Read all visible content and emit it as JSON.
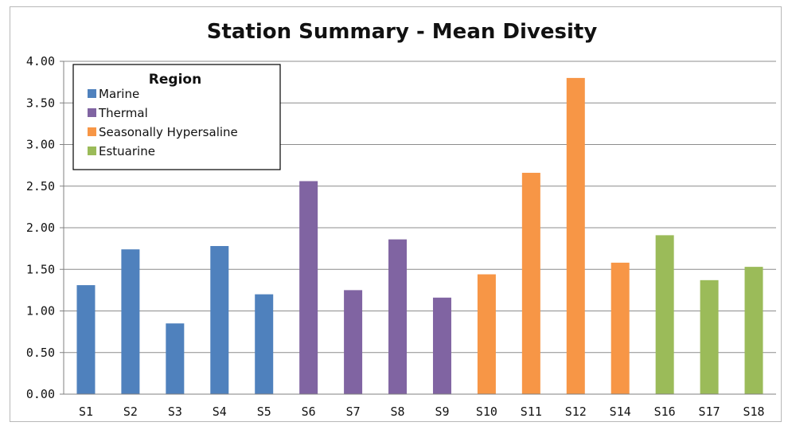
{
  "chart_data": {
    "type": "bar",
    "title": "Station Summary - Mean Divesity",
    "xlabel": "",
    "ylabel": "",
    "ylim": [
      0,
      4
    ],
    "yticks": [
      "0.00",
      "0.50",
      "1.00",
      "1.50",
      "2.00",
      "2.50",
      "3.00",
      "3.50",
      "4.00"
    ],
    "grid": true,
    "legend_position": "top-left",
    "legend_title": "Region",
    "regions": [
      {
        "name": "Marine",
        "color": "#4F81BD"
      },
      {
        "name": "Thermal",
        "color": "#8064A2"
      },
      {
        "name": "Seasonally Hypersaline",
        "color": "#F79646"
      },
      {
        "name": "Estuarine",
        "color": "#9BBB59"
      }
    ],
    "categories": [
      "S1",
      "S2",
      "S3",
      "S4",
      "S5",
      "S6",
      "S7",
      "S8",
      "S9",
      "S10",
      "S11",
      "S12",
      "S14",
      "S16",
      "S17",
      "S18"
    ],
    "values": [
      1.31,
      1.74,
      0.85,
      1.78,
      1.2,
      2.56,
      1.25,
      1.86,
      1.16,
      1.44,
      2.66,
      3.8,
      1.58,
      1.91,
      1.37,
      1.53
    ],
    "bar_region": [
      "Marine",
      "Marine",
      "Marine",
      "Marine",
      "Marine",
      "Thermal",
      "Thermal",
      "Thermal",
      "Thermal",
      "Seasonally Hypersaline",
      "Seasonally Hypersaline",
      "Seasonally Hypersaline",
      "Seasonally Hypersaline",
      "Estuarine",
      "Estuarine",
      "Estuarine"
    ]
  }
}
